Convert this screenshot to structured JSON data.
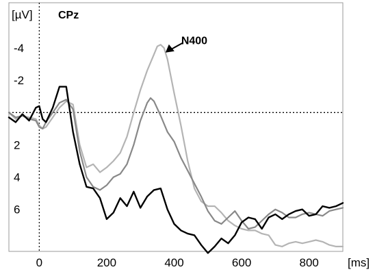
{
  "chart_data": {
    "type": "line",
    "title": "CPz",
    "xlabel": "[ms]",
    "ylabel": "[µV]",
    "xlim": [
      -90,
      900
    ],
    "ylim": [
      -6.8,
      8.6
    ],
    "y_inverted": true,
    "x_ticks": [
      0,
      200,
      400,
      600,
      800
    ],
    "x_tick_labels": [
      "0",
      "200",
      "400",
      "600",
      "800"
    ],
    "y_ticks": [
      -4,
      -2,
      2,
      4,
      6
    ],
    "y_tick_labels": [
      "-4",
      "-2",
      "2",
      "4",
      "6"
    ],
    "zero_lines": {
      "x": 0,
      "y": 0,
      "style": "dotted"
    },
    "grid": false,
    "legend": "none",
    "annotations": [
      {
        "text": "N400",
        "x": 360,
        "y": -3.8,
        "arrow": true
      }
    ],
    "series": [
      {
        "color": "#b4b4b4",
        "x": [
          -90,
          -70,
          -50,
          -30,
          -10,
          0,
          10,
          20,
          40,
          60,
          80,
          100,
          120,
          140,
          160,
          180,
          200,
          220,
          240,
          260,
          280,
          300,
          320,
          340,
          350,
          360,
          370,
          380,
          400,
          420,
          440,
          460,
          480,
          500,
          520,
          540,
          560,
          580,
          600,
          620,
          640,
          660,
          680,
          700,
          720,
          740,
          760,
          780,
          800,
          820,
          840,
          860,
          880,
          900
        ],
        "y": [
          0,
          0.4,
          0.2,
          0.3,
          0.4,
          0.8,
          1.0,
          0.9,
          0.3,
          -0.3,
          -0.7,
          -0.5,
          2.0,
          3.4,
          3.2,
          3.7,
          3.4,
          3.0,
          2.5,
          1.5,
          0.0,
          -1.4,
          -2.6,
          -3.6,
          -4.1,
          -4.2,
          -4.0,
          -3.3,
          -1.2,
          0.8,
          3.0,
          4.7,
          5.5,
          5.8,
          5.8,
          6.2,
          6.7,
          7.0,
          7.2,
          7.3,
          7.3,
          7.5,
          7.6,
          8.2,
          8.3,
          8.1,
          8.0,
          8.1,
          8.0,
          7.9,
          8.0,
          8.2,
          8.3,
          8.3
        ]
      },
      {
        "color": "#888888",
        "x": [
          -90,
          -70,
          -50,
          -30,
          -10,
          0,
          10,
          20,
          40,
          60,
          80,
          100,
          120,
          140,
          160,
          180,
          200,
          220,
          240,
          260,
          280,
          300,
          320,
          330,
          340,
          360,
          380,
          400,
          420,
          440,
          460,
          480,
          500,
          520,
          540,
          560,
          580,
          600,
          620,
          640,
          660,
          680,
          700,
          720,
          740,
          760,
          780,
          800,
          820,
          840,
          860,
          880,
          900
        ],
        "y": [
          0,
          0.3,
          0.2,
          0.4,
          0.5,
          0.9,
          1.0,
          0.6,
          0.0,
          -0.6,
          -0.8,
          -0.2,
          2.4,
          4.0,
          4.6,
          4.8,
          4.5,
          4.0,
          3.8,
          3.2,
          2.0,
          0.5,
          -0.6,
          -0.9,
          -0.7,
          0.2,
          1.2,
          1.8,
          2.8,
          3.6,
          4.4,
          5.2,
          6.1,
          6.7,
          6.9,
          6.5,
          6.1,
          6.7,
          7.2,
          7.1,
          6.7,
          6.3,
          6.0,
          6.2,
          6.5,
          6.5,
          6.3,
          6.2,
          6.3,
          6.4,
          6.1,
          6.0,
          5.9
        ]
      },
      {
        "color": "#000000",
        "x": [
          -90,
          -70,
          -50,
          -30,
          -10,
          0,
          10,
          20,
          40,
          60,
          80,
          100,
          120,
          140,
          160,
          180,
          200,
          220,
          240,
          260,
          280,
          300,
          320,
          340,
          360,
          380,
          400,
          420,
          440,
          460,
          480,
          500,
          510,
          520,
          540,
          560,
          580,
          600,
          620,
          640,
          660,
          680,
          700,
          720,
          740,
          760,
          780,
          800,
          820,
          840,
          860,
          880,
          900
        ],
        "y": [
          0.3,
          0.6,
          0.1,
          0.5,
          -0.3,
          -0.4,
          0.4,
          0.6,
          -0.3,
          -1.6,
          -1.6,
          1.2,
          3.2,
          4.6,
          4.7,
          5.3,
          6.6,
          6.2,
          5.3,
          5.8,
          4.9,
          5.9,
          5.2,
          4.8,
          4.7,
          6.0,
          6.9,
          7.3,
          7.5,
          7.6,
          8.2,
          8.7,
          8.5,
          8.3,
          7.8,
          8.1,
          7.6,
          6.8,
          6.5,
          6.6,
          7.2,
          6.5,
          6.3,
          6.6,
          6.3,
          6.1,
          6.0,
          6.4,
          6.3,
          5.8,
          5.9,
          5.8,
          5.6
        ]
      }
    ]
  }
}
